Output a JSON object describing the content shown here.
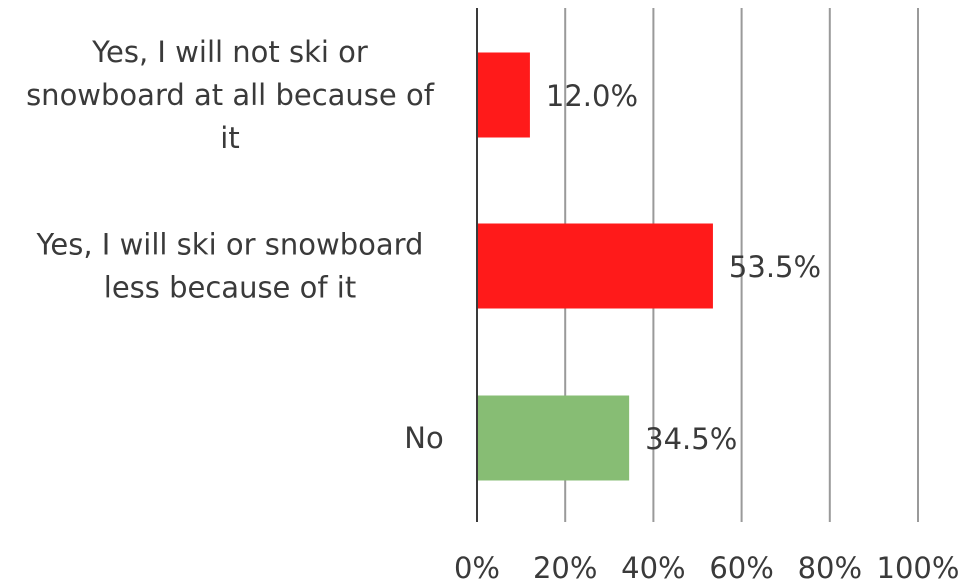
{
  "chart_data": {
    "type": "bar",
    "orientation": "horizontal",
    "categories": [
      [
        "Yes, I will not ski or",
        "snowboard at all because of",
        "it"
      ],
      [
        "Yes, I will ski or snowboard",
        "less because of it"
      ],
      [
        "No"
      ]
    ],
    "values": [
      12.0,
      53.5,
      34.5
    ],
    "data_labels": [
      "12.0%",
      "53.5%",
      "34.5%"
    ],
    "colors": [
      "#ff1a1a",
      "#ff1a1a",
      "#87bd74"
    ],
    "xlim": [
      0,
      100
    ],
    "x_ticks": [
      0,
      20,
      40,
      60,
      80,
      100
    ],
    "x_tick_labels": [
      "0%",
      "20%",
      "40%",
      "60%",
      "80%",
      "100%"
    ],
    "grid": true,
    "legend": "none",
    "title": "",
    "xlabel": "",
    "ylabel": ""
  }
}
